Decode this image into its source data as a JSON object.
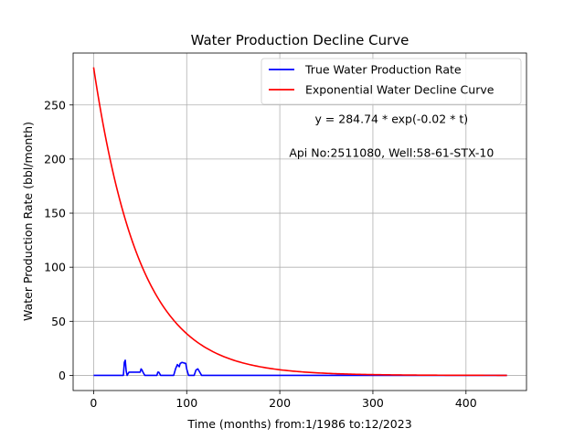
{
  "chart_data": {
    "type": "line",
    "title": "Water Production Decline Curve",
    "xlabel": "Time (months) from:1/1986 to:12/2023",
    "ylabel": "Water Production Rate (bbl/month)",
    "xlim": [
      -22,
      465
    ],
    "ylim": [
      -14,
      298
    ],
    "xticks": [
      0,
      100,
      200,
      300,
      400
    ],
    "yticks": [
      0,
      50,
      100,
      150,
      200,
      250
    ],
    "grid": true,
    "legend_position": "top-right",
    "annotations": [
      {
        "text": "y = 284.74 * exp(-0.02 * t)",
        "x": 320,
        "y": 237
      },
      {
        "text": "Api No:2511080, Well:58-61-STX-10",
        "x": 320,
        "y": 206
      }
    ],
    "series": [
      {
        "name": "True Water Production Rate",
        "color": "#0000ff",
        "x": [
          0,
          32,
          33,
          34,
          35,
          36,
          38,
          50,
          51,
          52,
          53,
          55,
          68,
          69,
          70,
          72,
          86,
          88,
          90,
          92,
          93,
          95,
          99,
          100,
          102,
          108,
          110,
          112,
          114,
          116,
          444
        ],
        "y": [
          0,
          0,
          12,
          14,
          4,
          0,
          3,
          3,
          6,
          5,
          3,
          0,
          0,
          3,
          3,
          0,
          0,
          6,
          10,
          8,
          11,
          12,
          11,
          6,
          0,
          0,
          5,
          6,
          3,
          0,
          0
        ]
      },
      {
        "name": "Exponential Water Decline Curve",
        "color": "#ff0000",
        "model": {
          "a": 284.74,
          "b": 0.02,
          "x_start": 0,
          "x_end": 444
        }
      }
    ]
  }
}
